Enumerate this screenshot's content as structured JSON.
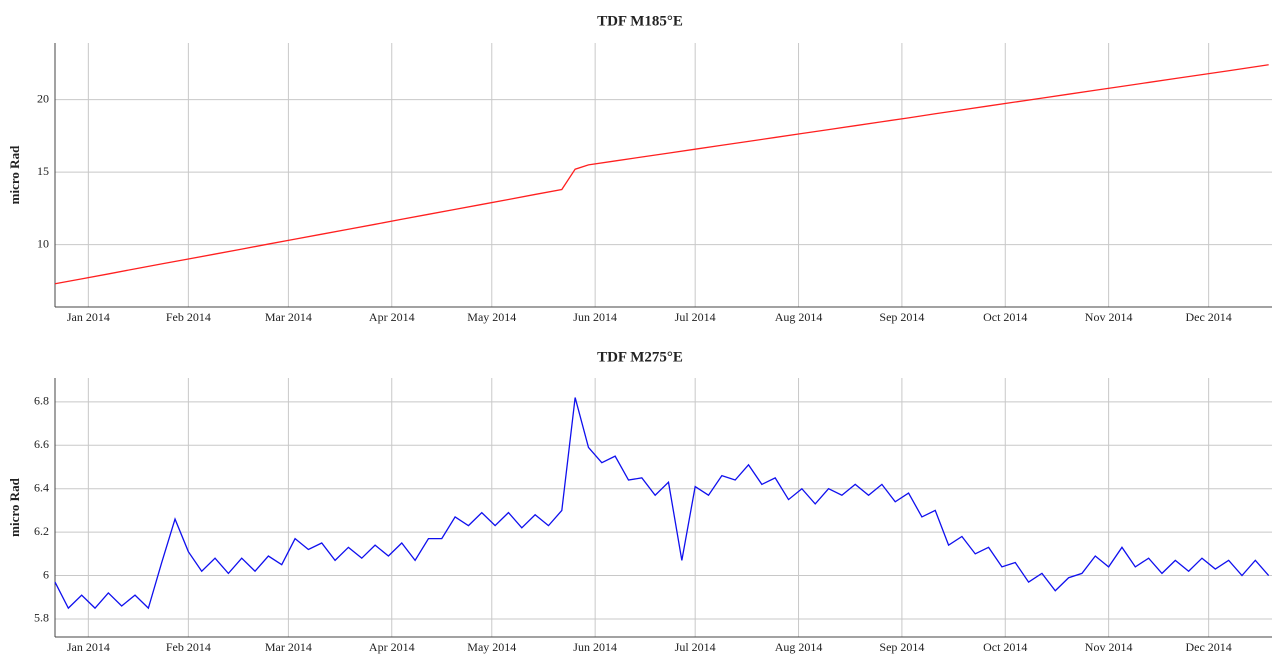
{
  "chart_data": [
    {
      "type": "line",
      "title": "TDF M185°E",
      "y_label": "micro Rad",
      "color": "#ff2020",
      "grid": true,
      "xlim": [
        0,
        365
      ],
      "xticks": [
        {
          "value": 10,
          "label": "Jan 2014"
        },
        {
          "value": 40,
          "label": "Feb 2014"
        },
        {
          "value": 70,
          "label": "Mar 2014"
        },
        {
          "value": 101,
          "label": "Apr 2014"
        },
        {
          "value": 131,
          "label": "May 2014"
        },
        {
          "value": 162,
          "label": "Jun 2014"
        },
        {
          "value": 192,
          "label": "Jul 2014"
        },
        {
          "value": 223,
          "label": "Aug 2014"
        },
        {
          "value": 254,
          "label": "Sep 2014"
        },
        {
          "value": 285,
          "label": "Oct 2014"
        },
        {
          "value": 316,
          "label": "Nov 2014"
        },
        {
          "value": 346,
          "label": "Dec 2014"
        }
      ],
      "ylim": [
        5.7,
        23.9
      ],
      "yticks": [
        10,
        15,
        20
      ],
      "x": [
        0,
        8,
        16,
        24,
        32,
        40,
        48,
        56,
        64,
        72,
        80,
        88,
        96,
        104,
        112,
        120,
        128,
        136,
        144,
        152,
        156,
        160,
        168,
        176,
        184,
        192,
        200,
        208,
        216,
        224,
        232,
        240,
        248,
        256,
        264,
        272,
        280,
        288,
        296,
        304,
        312,
        320,
        328,
        336,
        344,
        352,
        360,
        364
      ],
      "values": [
        7.3,
        7.64,
        7.98,
        8.33,
        8.67,
        9.01,
        9.35,
        9.69,
        10.04,
        10.38,
        10.72,
        11.06,
        11.4,
        11.75,
        12.09,
        12.43,
        12.77,
        13.11,
        13.46,
        13.8,
        15.2,
        15.5,
        15.77,
        16.04,
        16.31,
        16.58,
        16.85,
        17.12,
        17.39,
        17.66,
        17.93,
        18.2,
        18.47,
        18.74,
        19.02,
        19.29,
        19.56,
        19.83,
        20.1,
        20.37,
        20.64,
        20.91,
        21.18,
        21.45,
        21.72,
        21.99,
        22.26,
        22.4
      ]
    },
    {
      "type": "line",
      "title": "TDF M275°E",
      "y_label": "micro Rad",
      "color": "#1010ee",
      "grid": true,
      "xlim": [
        0,
        365
      ],
      "xticks": [
        {
          "value": 10,
          "label": "Jan 2014"
        },
        {
          "value": 40,
          "label": "Feb 2014"
        },
        {
          "value": 70,
          "label": "Mar 2014"
        },
        {
          "value": 101,
          "label": "Apr 2014"
        },
        {
          "value": 131,
          "label": "May 2014"
        },
        {
          "value": 162,
          "label": "Jun 2014"
        },
        {
          "value": 192,
          "label": "Jul 2014"
        },
        {
          "value": 223,
          "label": "Aug 2014"
        },
        {
          "value": 254,
          "label": "Sep 2014"
        },
        {
          "value": 285,
          "label": "Oct 2014"
        },
        {
          "value": 316,
          "label": "Nov 2014"
        },
        {
          "value": 346,
          "label": "Dec 2014"
        }
      ],
      "ylim": [
        5.717,
        6.91
      ],
      "yticks": [
        5.8,
        6,
        6.2,
        6.4,
        6.6,
        6.8
      ],
      "x": [
        0,
        4,
        8,
        12,
        16,
        20,
        24,
        28,
        32,
        36,
        40,
        44,
        48,
        52,
        56,
        60,
        64,
        68,
        72,
        76,
        80,
        84,
        88,
        92,
        96,
        100,
        104,
        108,
        112,
        116,
        120,
        124,
        128,
        132,
        136,
        140,
        144,
        148,
        152,
        156,
        160,
        164,
        168,
        172,
        176,
        180,
        184,
        188,
        192,
        196,
        200,
        204,
        208,
        212,
        216,
        220,
        224,
        228,
        232,
        236,
        240,
        244,
        248,
        252,
        256,
        260,
        264,
        268,
        272,
        276,
        280,
        284,
        288,
        292,
        296,
        300,
        304,
        308,
        312,
        316,
        320,
        324,
        328,
        332,
        336,
        340,
        344,
        348,
        352,
        356,
        360,
        364
      ],
      "values": [
        5.97,
        5.85,
        5.91,
        5.85,
        5.92,
        5.86,
        5.91,
        5.85,
        6.06,
        6.26,
        6.11,
        6.02,
        6.08,
        6.01,
        6.08,
        6.02,
        6.09,
        6.05,
        6.17,
        6.12,
        6.15,
        6.07,
        6.13,
        6.08,
        6.14,
        6.09,
        6.15,
        6.07,
        6.17,
        6.17,
        6.27,
        6.23,
        6.29,
        6.23,
        6.29,
        6.22,
        6.28,
        6.23,
        6.3,
        6.82,
        6.59,
        6.52,
        6.55,
        6.44,
        6.45,
        6.37,
        6.43,
        6.07,
        6.41,
        6.37,
        6.46,
        6.44,
        6.51,
        6.42,
        6.45,
        6.35,
        6.4,
        6.33,
        6.4,
        6.37,
        6.42,
        6.37,
        6.42,
        6.34,
        6.38,
        6.27,
        6.3,
        6.14,
        6.18,
        6.1,
        6.13,
        6.04,
        6.06,
        5.97,
        6.01,
        5.93,
        5.99,
        6.01,
        6.09,
        6.04,
        6.13,
        6.04,
        6.08,
        6.01,
        6.07,
        6.02,
        6.08,
        6.03,
        6.07,
        6.0,
        6.07,
        6.0
      ]
    }
  ]
}
